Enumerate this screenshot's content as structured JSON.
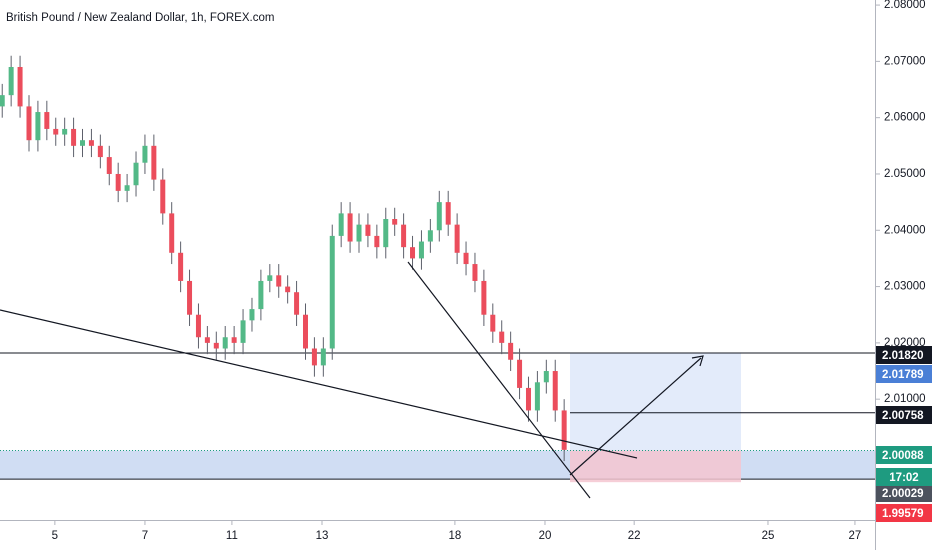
{
  "chart_data": {
    "type": "candlestick",
    "title": "British Pound / New Zealand Dollar, 1h, FOREX.com",
    "up_color": "#53b987",
    "down_color": "#eb4d5c",
    "x": [
      0.05,
      0.25,
      0.45,
      0.65,
      0.85,
      1.05,
      1.25,
      1.45,
      1.65,
      1.85,
      2.05,
      2.25,
      2.45,
      2.65,
      2.85,
      3.05,
      3.25,
      3.45,
      3.65,
      3.85,
      4.05,
      4.25,
      4.45,
      4.65,
      4.85,
      5.05,
      5.25,
      5.45,
      5.65,
      5.85,
      6.05,
      6.25,
      6.45,
      6.65,
      6.85,
      7.05,
      7.25,
      7.45,
      7.65,
      7.85,
      8.05,
      8.25,
      8.45,
      8.65,
      8.85,
      9.05,
      9.25,
      9.45,
      9.65,
      9.85,
      10.05,
      10.25,
      10.45,
      10.65,
      10.85,
      11.05,
      11.25,
      11.45,
      11.65,
      11.85,
      12.05,
      12.25,
      12.45,
      12.65
    ],
    "open": [
      2.062,
      2.064,
      2.069,
      2.062,
      2.056,
      2.061,
      2.058,
      2.057,
      2.058,
      2.055,
      2.056,
      2.055,
      2.053,
      2.05,
      2.047,
      2.048,
      2.052,
      2.055,
      2.049,
      2.043,
      2.036,
      2.031,
      2.025,
      2.021,
      2.02,
      2.019,
      2.021,
      2.02,
      2.024,
      2.026,
      2.031,
      2.032,
      2.03,
      2.029,
      2.025,
      2.019,
      2.016,
      2.019,
      2.039,
      2.043,
      2.038,
      2.041,
      2.039,
      2.037,
      2.042,
      2.041,
      2.037,
      2.035,
      2.038,
      2.04,
      2.045,
      2.041,
      2.036,
      2.034,
      2.031,
      2.025,
      2.022,
      2.02,
      2.017,
      2.012,
      2.008,
      2.013,
      2.015,
      2.008
    ],
    "high": [
      2.066,
      2.071,
      2.071,
      2.064,
      2.063,
      2.063,
      2.06,
      2.06,
      2.06,
      2.058,
      2.058,
      2.057,
      2.055,
      2.052,
      2.05,
      2.054,
      2.057,
      2.057,
      2.051,
      2.045,
      2.038,
      2.033,
      2.027,
      2.023,
      2.022,
      2.023,
      2.023,
      2.026,
      2.028,
      2.033,
      2.034,
      2.034,
      2.032,
      2.031,
      2.027,
      2.021,
      2.021,
      2.041,
      2.045,
      2.045,
      2.043,
      2.043,
      2.041,
      2.044,
      2.044,
      2.043,
      2.039,
      2.04,
      2.042,
      2.047,
      2.047,
      2.043,
      2.038,
      2.036,
      2.033,
      2.027,
      2.024,
      2.022,
      2.019,
      2.014,
      2.015,
      2.017,
      2.017,
      2.01
    ],
    "low": [
      2.06,
      2.062,
      2.06,
      2.054,
      2.054,
      2.056,
      2.055,
      2.055,
      2.053,
      2.053,
      2.053,
      2.051,
      2.048,
      2.045,
      2.045,
      2.046,
      2.05,
      2.047,
      2.041,
      2.034,
      2.029,
      2.023,
      2.019,
      2.018,
      2.017,
      2.017,
      2.018,
      2.018,
      2.022,
      2.024,
      2.029,
      2.028,
      2.027,
      2.023,
      2.017,
      2.014,
      2.014,
      2.017,
      2.037,
      2.036,
      2.036,
      2.037,
      2.035,
      2.035,
      2.039,
      2.035,
      2.033,
      2.033,
      2.036,
      2.038,
      2.039,
      2.034,
      2.032,
      2.029,
      2.023,
      2.02,
      2.018,
      2.015,
      2.01,
      2.006,
      2.006,
      2.011,
      2.006,
      1.999
    ],
    "close": [
      2.064,
      2.069,
      2.062,
      2.056,
      2.061,
      2.058,
      2.057,
      2.058,
      2.055,
      2.056,
      2.055,
      2.053,
      2.05,
      2.047,
      2.048,
      2.052,
      2.055,
      2.049,
      2.043,
      2.036,
      2.031,
      2.025,
      2.021,
      2.02,
      2.019,
      2.021,
      2.02,
      2.024,
      2.026,
      2.031,
      2.032,
      2.03,
      2.029,
      2.025,
      2.019,
      2.016,
      2.019,
      2.039,
      2.043,
      2.038,
      2.041,
      2.039,
      2.037,
      2.042,
      2.041,
      2.037,
      2.035,
      2.038,
      2.04,
      2.045,
      2.041,
      2.036,
      2.034,
      2.031,
      2.025,
      2.022,
      2.02,
      2.017,
      2.012,
      2.008,
      2.013,
      2.015,
      2.008,
      2.001
    ],
    "xlim": [
      0,
      19.62
    ],
    "xticks": [
      {
        "value": 1.23,
        "label": "5"
      },
      {
        "value": 3.25,
        "label": "7"
      },
      {
        "value": 5.2,
        "label": "11"
      },
      {
        "value": 7.22,
        "label": "13"
      },
      {
        "value": 10.2,
        "label": "18"
      },
      {
        "value": 12.22,
        "label": "20"
      },
      {
        "value": 14.22,
        "label": "22"
      },
      {
        "value": 17.22,
        "label": "25"
      },
      {
        "value": 19.17,
        "label": "27"
      }
    ],
    "ylim": [
      1.98854,
      2.0809
    ],
    "yticks": [
      {
        "value": 2.08,
        "label": "2.08000"
      },
      {
        "value": 2.07,
        "label": "2.07000"
      },
      {
        "value": 2.06,
        "label": "2.06000"
      },
      {
        "value": 2.05,
        "label": "2.05000"
      },
      {
        "value": 2.04,
        "label": "2.04000"
      },
      {
        "value": 2.03,
        "label": "2.03000"
      },
      {
        "value": 2.02,
        "label": "2.02000"
      },
      {
        "value": 2.01,
        "label": "2.01000"
      }
    ],
    "levels": [
      {
        "value": 2.0182,
        "label": "2.01820",
        "color": "#131722"
      },
      {
        "value": 2.01789,
        "label": "2.01789",
        "color": "#4a7fd6"
      },
      {
        "value": 2.00758,
        "label": "2.00758",
        "color": "#131722"
      },
      {
        "value": 2.00088,
        "label": "2.00088",
        "color": "#1e9b80"
      },
      {
        "value": 2.00029,
        "label": "2.00029",
        "color": "#4c525e"
      },
      {
        "value": 1.99579,
        "label": "1.99579",
        "color": "#f23645"
      }
    ],
    "countdown": "17:02"
  }
}
